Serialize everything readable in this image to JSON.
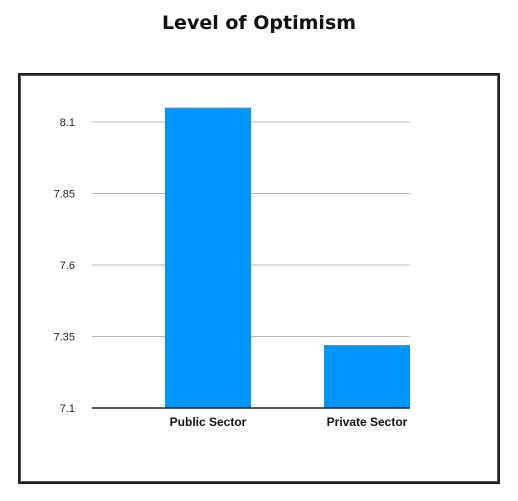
{
  "chart_data": {
    "type": "bar",
    "title": "Level of Optimism",
    "xlabel": "",
    "ylabel": "",
    "categories": [
      "Public Sector",
      "Private Sector"
    ],
    "values": [
      8.15,
      7.32
    ],
    "ylim": [
      7.1,
      8.1
    ],
    "y_ticks": [
      "7.1",
      "7.35",
      "7.6",
      "7.85",
      "8.1"
    ],
    "grid": true,
    "bar_color": "#0096ff"
  }
}
